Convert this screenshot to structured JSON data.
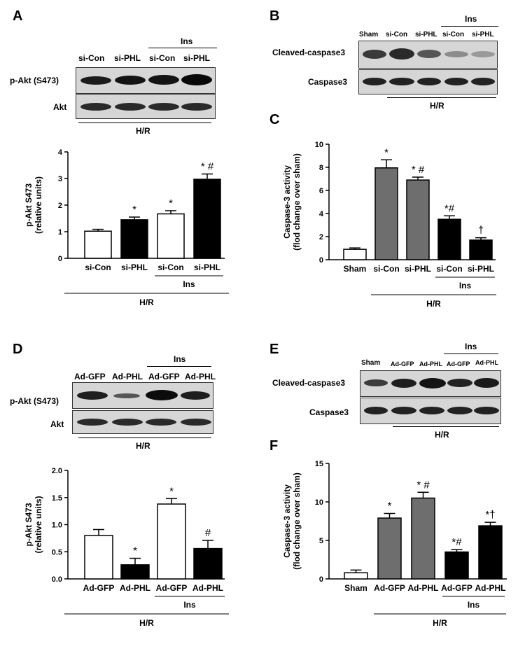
{
  "panels": {
    "A": {
      "letter": "A",
      "group_top": "Ins",
      "lane_labels": [
        "si-Con",
        "si-PHL",
        "si-Con",
        "si-PHL"
      ],
      "row_labels": [
        "p-Akt (S473)",
        "Akt"
      ],
      "condition": "H/R"
    },
    "B": {
      "letter": "B",
      "group_top": "Ins",
      "lane_labels": [
        "Sham",
        "si-Con",
        "si-PHL",
        "si-Con",
        "si-PHL"
      ],
      "row_labels": [
        "Cleaved-caspase3",
        "Caspase3"
      ],
      "condition": "H/R"
    },
    "C": {
      "letter": "C"
    },
    "D": {
      "letter": "D",
      "group_top": "Ins",
      "lane_labels": [
        "Ad-GFP",
        "Ad-PHL",
        "Ad-GFP",
        "Ad-PHL"
      ],
      "row_labels": [
        "p-Akt (S473)",
        "Akt"
      ],
      "condition": "H/R"
    },
    "E": {
      "letter": "E",
      "group_top": "Ins",
      "lane_labels": [
        "Sham",
        "Ad-GFP",
        "Ad-PHL",
        "Ad-GFP",
        "Ad-PHL"
      ],
      "row_labels": [
        "Cleaved-caspase3",
        "Caspase3"
      ],
      "condition": "H/R"
    },
    "F": {
      "letter": "F"
    }
  },
  "colors": {
    "white_bar": "#ffffff",
    "gray_bar": "#6e6e6e",
    "black_bar": "#000000"
  },
  "chart_data": [
    {
      "panel": "A",
      "type": "bar",
      "categories": [
        "si-Con",
        "si-PHL",
        "si-Con",
        "si-PHL"
      ],
      "values": [
        1.02,
        1.45,
        1.67,
        2.97
      ],
      "errors": [
        0.07,
        0.1,
        0.12,
        0.2
      ],
      "fills": [
        "white",
        "black",
        "white",
        "black"
      ],
      "annotations": [
        "",
        "*",
        "*",
        "* #"
      ],
      "ylabel": "p-Akt S473\n(relative units)",
      "ylim": [
        0,
        4
      ],
      "yticks": [
        "0",
        "1",
        "2",
        "3",
        "4"
      ],
      "group_label": "Ins",
      "group_span": [
        2,
        3
      ],
      "condition": "H/R"
    },
    {
      "panel": "C",
      "type": "bar",
      "categories": [
        "Sham",
        "si-Con",
        "si-PHL",
        "si-Con",
        "si-PHL"
      ],
      "values": [
        0.9,
        7.95,
        6.9,
        3.5,
        1.7
      ],
      "errors": [
        0.12,
        0.7,
        0.25,
        0.3,
        0.2
      ],
      "fills": [
        "white",
        "gray",
        "gray",
        "black",
        "black"
      ],
      "annotations": [
        "",
        "*",
        "* #",
        "*#",
        "†"
      ],
      "ylabel": "Caspase-3 activity\n(flod change over sham)",
      "ylim": [
        0,
        10
      ],
      "yticks": [
        "0",
        "2",
        "4",
        "6",
        "8",
        "10"
      ],
      "group_label": "Ins",
      "group_span": [
        3,
        4
      ],
      "condition": "H/R",
      "condition_span": [
        1,
        4
      ]
    },
    {
      "panel": "D",
      "type": "bar",
      "categories": [
        "Ad-GFP",
        "Ad-PHL",
        "Ad-GFP",
        "Ad-PHL"
      ],
      "values": [
        0.8,
        0.26,
        1.38,
        0.56
      ],
      "errors": [
        0.11,
        0.12,
        0.1,
        0.15
      ],
      "fills": [
        "white",
        "black",
        "white",
        "black"
      ],
      "annotations": [
        "",
        "*",
        "*",
        "#"
      ],
      "ylabel": "p-Akt S473\n(relative units)",
      "ylim": [
        0,
        2
      ],
      "yticks": [
        "0.0",
        "0.5",
        "1.0",
        "1.5",
        "2.0"
      ],
      "group_label": "Ins",
      "group_span": [
        2,
        3
      ],
      "condition": "H/R"
    },
    {
      "panel": "F",
      "type": "bar",
      "categories": [
        "Sham",
        "Ad-GFP",
        "Ad-PHL",
        "Ad-GFP",
        "Ad-PHL"
      ],
      "values": [
        0.8,
        7.9,
        10.5,
        3.5,
        6.9
      ],
      "errors": [
        0.35,
        0.6,
        0.75,
        0.3,
        0.45
      ],
      "fills": [
        "white",
        "gray",
        "gray",
        "black",
        "black"
      ],
      "annotations": [
        "",
        "*",
        "* #",
        "*#",
        "*†"
      ],
      "ylabel": "Caspase-3 activity\n(flod change over sham)",
      "ylim": [
        0,
        15
      ],
      "yticks": [
        "0",
        "5",
        "10",
        "15"
      ],
      "group_label": "Ins",
      "group_span": [
        3,
        4
      ],
      "condition": "H/R",
      "condition_span": [
        1,
        4
      ]
    }
  ]
}
